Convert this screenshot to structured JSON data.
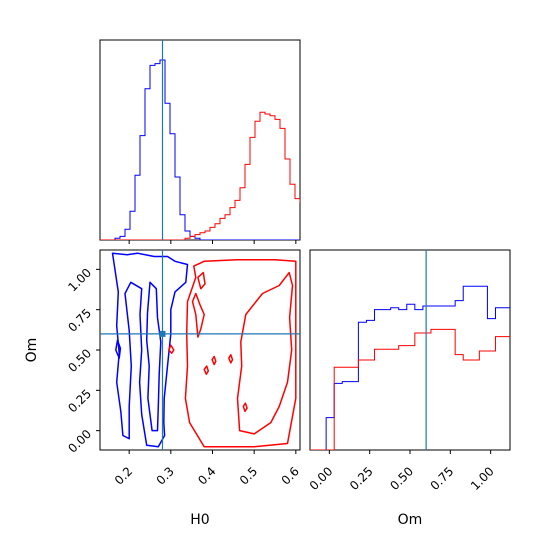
{
  "chart_data": {
    "type": "corner",
    "parameters": [
      "H0",
      "Om"
    ],
    "truths": {
      "H0": 0.28,
      "Om": 0.6
    },
    "colors": {
      "series_1": "#0000ff",
      "series_2": "#ff0000",
      "truth": "#1f77b4"
    },
    "axes": {
      "H0": {
        "label": "H0",
        "lim": [
          0.13,
          0.61
        ],
        "ticks": [
          "0.2",
          "0.3",
          "0.4",
          "0.5",
          "0.6"
        ],
        "tick_values": [
          0.2,
          0.3,
          0.4,
          0.5,
          0.6
        ]
      },
      "Om": {
        "label": "Om",
        "lim": [
          -0.12,
          1.12
        ],
        "ticks": [
          "0.00",
          "0.25",
          "0.50",
          "0.75",
          "1.00"
        ],
        "tick_values": [
          0.0,
          0.25,
          0.5,
          0.75,
          1.0
        ]
      }
    },
    "hist_H0": {
      "edges_start": 0.13,
      "bin_width": 0.012,
      "blue": [
        0,
        0,
        0,
        0.01,
        0.02,
        0.06,
        0.16,
        0.36,
        0.58,
        0.84,
        0.97,
        0.98,
        1.0,
        0.76,
        0.59,
        0.35,
        0.14,
        0.05,
        0.02,
        0.01,
        0,
        0,
        0,
        0,
        0,
        0,
        0,
        0,
        0,
        0,
        0,
        0,
        0,
        0,
        0,
        0,
        0,
        0,
        0,
        0
      ],
      "red": [
        0,
        0,
        0,
        0,
        0,
        0,
        0,
        0,
        0,
        0,
        0,
        0,
        0,
        0,
        0,
        0,
        0,
        0.01,
        0.02,
        0.03,
        0.04,
        0.05,
        0.07,
        0.09,
        0.12,
        0.14,
        0.18,
        0.22,
        0.29,
        0.42,
        0.57,
        0.66,
        0.71,
        0.7,
        0.69,
        0.67,
        0.62,
        0.45,
        0.31,
        0.23,
        0.21,
        0.12,
        0.01
      ]
    },
    "hist_Om": {
      "edges_start": -0.12,
      "bin_width": 0.05,
      "blue": [
        0,
        0,
        0.18,
        0.37,
        0.38,
        0.38,
        0.71,
        0.72,
        0.78,
        0.78,
        0.79,
        0.78,
        0.81,
        0.78,
        0.8,
        0.8,
        0.8,
        0.8,
        0.83,
        0.91,
        0.91,
        0.91,
        0.73,
        0.79,
        0.79,
        0.8,
        0.8,
        0.79,
        0.9,
        0.88,
        0.93,
        0.93,
        0.93,
        0.92,
        0.81,
        0.65,
        0.65,
        0.65,
        0,
        0
      ],
      "red": [
        0,
        0,
        0,
        0.46,
        0.46,
        0.46,
        0.5,
        0.5,
        0.56,
        0.56,
        0.56,
        0.58,
        0.58,
        0.65,
        0.65,
        0.67,
        0.67,
        0.67,
        0.53,
        0.5,
        0.5,
        0.55,
        0.55,
        0.63,
        0.63,
        0.55,
        0.55,
        0.55,
        0.69,
        0.69,
        0.69,
        0.65,
        0.64,
        0.65,
        0.64,
        0.59,
        0.57,
        0,
        0,
        0
      ]
    },
    "contours": {
      "blue": [
        [
          [
            0.185,
            -0.03
          ],
          [
            0.18,
            0.12
          ],
          [
            0.17,
            0.3
          ],
          [
            0.176,
            0.48
          ],
          [
            0.17,
            0.65
          ],
          [
            0.174,
            0.86
          ],
          [
            0.164,
            1.03
          ],
          [
            0.16,
            1.1
          ],
          [
            0.195,
            1.09
          ],
          [
            0.22,
            1.1
          ],
          [
            0.26,
            1.08
          ],
          [
            0.292,
            1.08
          ],
          [
            0.31,
            1.05
          ],
          [
            0.34,
            1.03
          ],
          [
            0.336,
            0.92
          ],
          [
            0.31,
            0.86
          ],
          [
            0.3,
            0.75
          ],
          [
            0.3,
            0.6
          ],
          [
            0.292,
            0.4
          ],
          [
            0.284,
            0.2
          ],
          [
            0.283,
            0.05
          ],
          [
            0.285,
            -0.03
          ],
          [
            0.27,
            -0.1
          ],
          [
            0.242,
            -0.09
          ],
          [
            0.23,
            0.1
          ],
          [
            0.225,
            0.3
          ],
          [
            0.23,
            0.5
          ],
          [
            0.226,
            0.72
          ],
          [
            0.23,
            0.88
          ],
          [
            0.204,
            0.92
          ],
          [
            0.19,
            0.85
          ],
          [
            0.2,
            0.62
          ],
          [
            0.205,
            0.4
          ],
          [
            0.2,
            0.15
          ],
          [
            0.2,
            -0.05
          ]
        ],
        [
          [
            0.255,
            0.0
          ],
          [
            0.245,
            0.2
          ],
          [
            0.248,
            0.4
          ],
          [
            0.242,
            0.56
          ],
          [
            0.244,
            0.73
          ],
          [
            0.25,
            0.92
          ],
          [
            0.265,
            0.88
          ],
          [
            0.268,
            0.7
          ],
          [
            0.276,
            0.55
          ],
          [
            0.272,
            0.35
          ],
          [
            0.27,
            0.15
          ],
          [
            0.268,
            0.0
          ]
        ],
        [
          [
            0.176,
            0.45
          ],
          [
            0.168,
            0.5
          ],
          [
            0.172,
            0.56
          ],
          [
            0.179,
            0.51
          ]
        ]
      ],
      "red": [
        [
          [
            0.38,
            -0.1
          ],
          [
            0.345,
            0.05
          ],
          [
            0.335,
            0.2
          ],
          [
            0.34,
            0.4
          ],
          [
            0.338,
            0.6
          ],
          [
            0.34,
            0.8
          ],
          [
            0.36,
            0.95
          ],
          [
            0.355,
            1.02
          ],
          [
            0.38,
            1.05
          ],
          [
            0.46,
            1.06
          ],
          [
            0.55,
            1.06
          ],
          [
            0.6,
            1.05
          ],
          [
            0.6,
            0.7
          ],
          [
            0.6,
            0.2
          ],
          [
            0.58,
            -0.08
          ],
          [
            0.5,
            -0.1
          ],
          [
            0.42,
            -0.1
          ]
        ],
        [
          [
            0.465,
            0.0
          ],
          [
            0.46,
            0.2
          ],
          [
            0.47,
            0.4
          ],
          [
            0.468,
            0.55
          ],
          [
            0.48,
            0.72
          ],
          [
            0.52,
            0.85
          ],
          [
            0.56,
            0.9
          ],
          [
            0.584,
            0.98
          ],
          [
            0.592,
            0.9
          ],
          [
            0.585,
            0.7
          ],
          [
            0.59,
            0.5
          ],
          [
            0.58,
            0.3
          ],
          [
            0.56,
            0.15
          ],
          [
            0.54,
            0.05
          ],
          [
            0.5,
            -0.02
          ]
        ],
        [
          [
            0.372,
            0.88
          ],
          [
            0.365,
            0.95
          ],
          [
            0.378,
            0.98
          ],
          [
            0.382,
            0.91
          ]
        ],
        [
          [
            0.36,
            0.72
          ],
          [
            0.352,
            0.8
          ],
          [
            0.36,
            0.85
          ],
          [
            0.37,
            0.78
          ],
          [
            0.38,
            0.72
          ],
          [
            0.372,
            0.63
          ],
          [
            0.365,
            0.58
          ],
          [
            0.362,
            0.66
          ]
        ],
        [
          [
            0.302,
            0.48
          ],
          [
            0.295,
            0.5
          ],
          [
            0.3,
            0.53
          ],
          [
            0.307,
            0.5
          ]
        ],
        [
          [
            0.404,
            0.41
          ],
          [
            0.399,
            0.44
          ],
          [
            0.404,
            0.46
          ],
          [
            0.408,
            0.43
          ]
        ],
        [
          [
            0.444,
            0.42
          ],
          [
            0.439,
            0.45
          ],
          [
            0.444,
            0.47
          ],
          [
            0.448,
            0.44
          ]
        ],
        [
          [
            0.478,
            0.12
          ],
          [
            0.474,
            0.15
          ],
          [
            0.479,
            0.17
          ],
          [
            0.483,
            0.14
          ]
        ],
        [
          [
            0.385,
            0.35
          ],
          [
            0.38,
            0.38
          ],
          [
            0.386,
            0.4
          ],
          [
            0.39,
            0.37
          ]
        ]
      ]
    }
  }
}
